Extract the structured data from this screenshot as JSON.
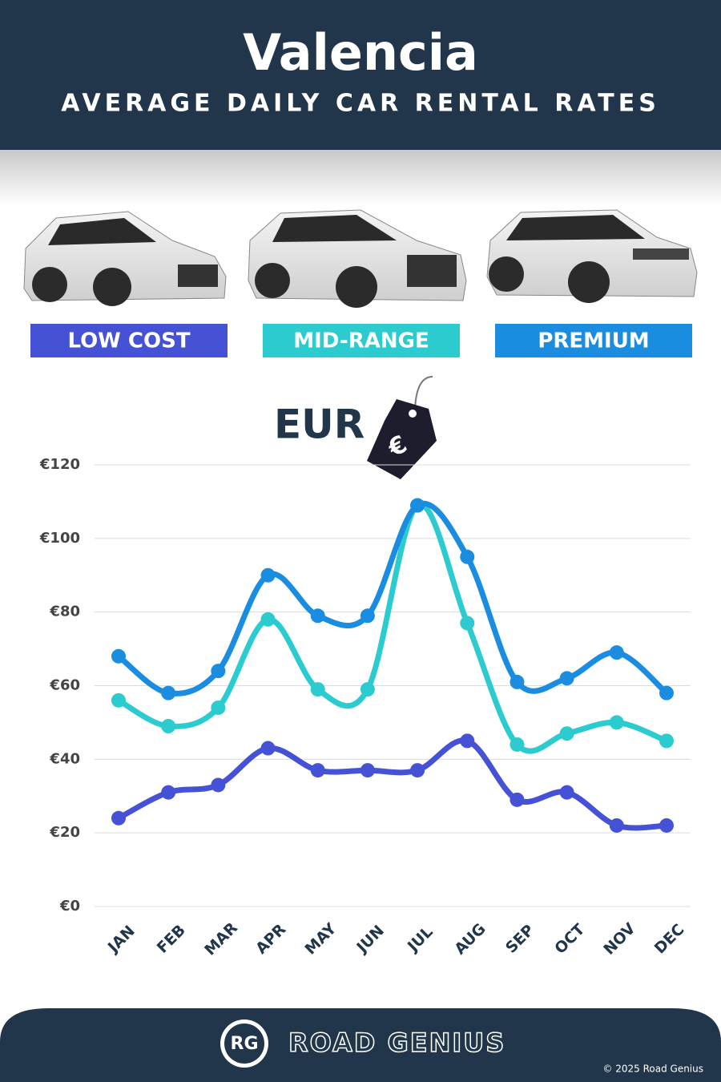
{
  "chart_data": {
    "type": "line",
    "title": "Valencia",
    "subtitle": "AVERAGE DAILY CAR RENTAL RATES",
    "currency_label": "EUR",
    "currency_symbol": "€",
    "categories": [
      "JAN",
      "FEB",
      "MAR",
      "APR",
      "MAY",
      "JUN",
      "JUL",
      "AUG",
      "SEP",
      "OCT",
      "NOV",
      "DEC"
    ],
    "series": [
      {
        "name": "LOW COST",
        "color": "#4652d6",
        "values": [
          24,
          31,
          33,
          43,
          37,
          37,
          37,
          45,
          29,
          31,
          22,
          22
        ]
      },
      {
        "name": "MID-RANGE",
        "color": "#2ccbcf",
        "values": [
          56,
          49,
          54,
          78,
          59,
          59,
          109,
          77,
          44,
          47,
          50,
          45
        ]
      },
      {
        "name": "PREMIUM",
        "color": "#1a8de0",
        "values": [
          68,
          58,
          64,
          90,
          79,
          79,
          109,
          95,
          61,
          62,
          69,
          58
        ]
      }
    ],
    "ylim": [
      0,
      120
    ],
    "yticks": [
      {
        "value": 0,
        "label": "€0"
      },
      {
        "value": 20,
        "label": "€20"
      },
      {
        "value": 40,
        "label": "€40"
      },
      {
        "value": 60,
        "label": "€60"
      },
      {
        "value": 80,
        "label": "€80"
      },
      {
        "value": 100,
        "label": "€100"
      },
      {
        "value": 120,
        "label": "€120"
      }
    ],
    "grid": true,
    "smooth": true,
    "footer": {
      "logo": "RG",
      "brand": "ROAD GENIUS",
      "copyright": "© 2025 Road Genius"
    }
  }
}
